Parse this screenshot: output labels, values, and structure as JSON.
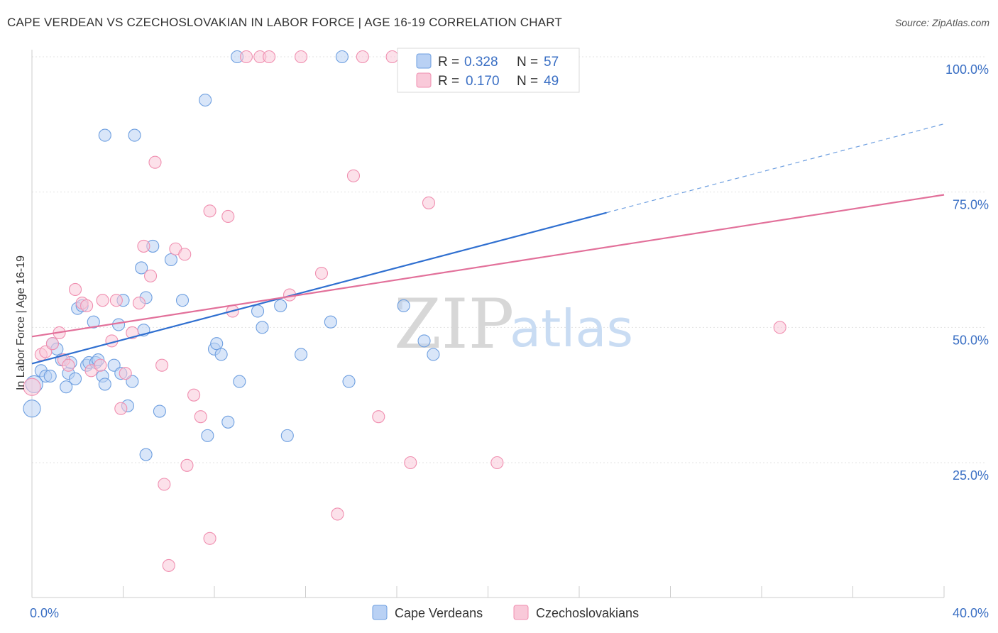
{
  "header": {
    "title": "CAPE VERDEAN VS CZECHOSLOVAKIAN IN LABOR FORCE | AGE 16-19 CORRELATION CHART",
    "source": "Source: ZipAtlas.com"
  },
  "watermark": {
    "zip": "ZIP",
    "atlas": "atlas"
  },
  "legend_top": [
    {
      "r_label": "R =",
      "r_value": "0.328",
      "n_label": "N =",
      "n_value": "57",
      "color": "#6e9fe0"
    },
    {
      "r_label": "R =",
      "r_value": "0.170",
      "n_label": "N =",
      "n_value": "49",
      "color": "#f08fb0"
    }
  ],
  "chart_data": {
    "type": "scatter",
    "title": "CAPE VERDEAN VS CZECHOSLOVAKIAN IN LABOR FORCE | AGE 16-19 CORRELATION CHART",
    "ylabel": "In Labor Force | Age 16-19",
    "xlabel": "",
    "xlim": [
      0,
      40
    ],
    "ylim": [
      0,
      105
    ],
    "x_tick_labels": [
      "0.0%",
      "40.0%"
    ],
    "y_ticks": [
      25,
      50,
      75,
      100
    ],
    "y_tick_labels": [
      "25.0%",
      "50.0%",
      "75.0%",
      "100.0%"
    ],
    "grid": true,
    "legend_position": "top-center",
    "series": [
      {
        "name": "Cape Verdeans",
        "color": "#6e9fe0",
        "fill": "#b9d1f4",
        "r": 0.328,
        "n": 57,
        "trend": {
          "x0": 0,
          "y0": 43.3,
          "x1": 25.2,
          "y1": 71.2,
          "dash_x1": 40,
          "dash_y1": 87.6
        },
        "points": [
          [
            0.0,
            35.0
          ],
          [
            0.4,
            42.0
          ],
          [
            0.6,
            41.0
          ],
          [
            0.8,
            41.0
          ],
          [
            0.9,
            47.0
          ],
          [
            1.1,
            46.0
          ],
          [
            1.3,
            44.0
          ],
          [
            1.5,
            39.0
          ],
          [
            1.6,
            41.5
          ],
          [
            1.7,
            43.5
          ],
          [
            1.9,
            40.5
          ],
          [
            2.0,
            53.5
          ],
          [
            2.2,
            54.0
          ],
          [
            2.4,
            43.0
          ],
          [
            2.5,
            43.5
          ],
          [
            2.7,
            51.0
          ],
          [
            2.8,
            43.5
          ],
          [
            3.1,
            41.0
          ],
          [
            3.2,
            85.5
          ],
          [
            3.2,
            39.5
          ],
          [
            3.6,
            43.0
          ],
          [
            3.8,
            50.5
          ],
          [
            3.9,
            41.5
          ],
          [
            4.0,
            55.0
          ],
          [
            4.2,
            35.5
          ],
          [
            4.4,
            40.0
          ],
          [
            4.5,
            85.5
          ],
          [
            4.8,
            61.0
          ],
          [
            4.9,
            49.5
          ],
          [
            5.0,
            55.5
          ],
          [
            5.0,
            26.5
          ],
          [
            5.3,
            65.0
          ],
          [
            5.6,
            34.5
          ],
          [
            6.1,
            62.5
          ],
          [
            6.6,
            55.0
          ],
          [
            7.6,
            92.0
          ],
          [
            7.7,
            30.0
          ],
          [
            8.0,
            46.0
          ],
          [
            8.1,
            47.0
          ],
          [
            8.3,
            45.0
          ],
          [
            8.6,
            32.5
          ],
          [
            9.1,
            40.0
          ],
          [
            9.0,
            100.0
          ],
          [
            9.9,
            53.0
          ],
          [
            10.1,
            50.0
          ],
          [
            10.9,
            54.0
          ],
          [
            11.2,
            30.0
          ],
          [
            11.8,
            45.0
          ],
          [
            13.1,
            51.0
          ],
          [
            13.6,
            100.0
          ],
          [
            13.9,
            40.0
          ],
          [
            16.3,
            54.0
          ],
          [
            17.2,
            47.5
          ],
          [
            17.6,
            45.0
          ],
          [
            23.0,
            100.0
          ],
          [
            0.1,
            39.5
          ],
          [
            2.9,
            44.0
          ]
        ]
      },
      {
        "name": "Czechoslovakians",
        "color": "#f08fb0",
        "fill": "#f9c9d9",
        "r": 0.17,
        "n": 49,
        "trend": {
          "x0": 0,
          "y0": 48.3,
          "x1": 40,
          "y1": 74.5
        },
        "points": [
          [
            0.0,
            39.0
          ],
          [
            0.4,
            45.0
          ],
          [
            0.6,
            45.5
          ],
          [
            0.9,
            47.0
          ],
          [
            1.2,
            49.0
          ],
          [
            1.4,
            44.0
          ],
          [
            1.6,
            43.0
          ],
          [
            1.9,
            57.0
          ],
          [
            2.2,
            54.5
          ],
          [
            2.4,
            54.0
          ],
          [
            2.6,
            42.0
          ],
          [
            3.0,
            43.0
          ],
          [
            3.1,
            55.0
          ],
          [
            3.5,
            47.5
          ],
          [
            3.7,
            55.0
          ],
          [
            3.9,
            35.0
          ],
          [
            4.1,
            41.5
          ],
          [
            4.4,
            49.0
          ],
          [
            4.7,
            54.5
          ],
          [
            4.9,
            65.0
          ],
          [
            5.2,
            59.5
          ],
          [
            5.4,
            80.5
          ],
          [
            5.7,
            43.0
          ],
          [
            5.8,
            21.0
          ],
          [
            6.0,
            6.0
          ],
          [
            6.3,
            64.5
          ],
          [
            6.7,
            63.5
          ],
          [
            6.8,
            24.5
          ],
          [
            7.1,
            37.5
          ],
          [
            7.4,
            33.5
          ],
          [
            7.8,
            71.5
          ],
          [
            7.8,
            11.0
          ],
          [
            8.6,
            70.5
          ],
          [
            8.8,
            53.0
          ],
          [
            9.4,
            100.0
          ],
          [
            10.0,
            100.0
          ],
          [
            10.4,
            100.0
          ],
          [
            11.8,
            100.0
          ],
          [
            11.3,
            56.0
          ],
          [
            12.7,
            60.0
          ],
          [
            13.4,
            15.5
          ],
          [
            14.1,
            78.0
          ],
          [
            14.5,
            100.0
          ],
          [
            15.2,
            33.5
          ],
          [
            15.8,
            100.0
          ],
          [
            16.6,
            25.0
          ],
          [
            17.4,
            73.0
          ],
          [
            20.4,
            25.0
          ],
          [
            32.8,
            50.0
          ]
        ]
      }
    ]
  }
}
